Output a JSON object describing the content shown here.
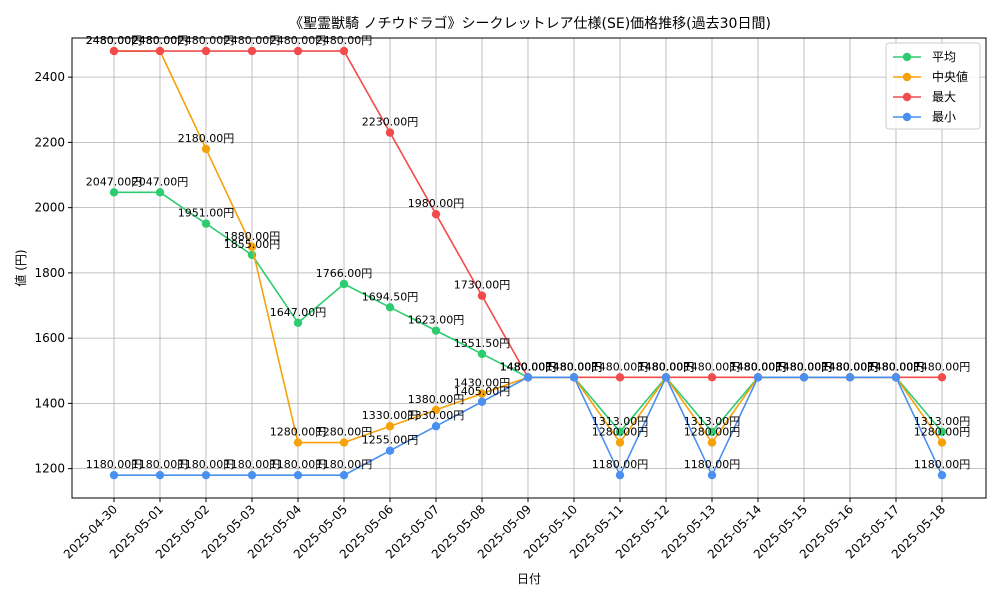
{
  "chart_data": {
    "type": "line",
    "title": "《聖霊獣騎 ノチウドラゴ》シークレットレア仕様(SE)価格推移(過去30日間)",
    "xlabel": "日付",
    "ylabel": "値 (円)",
    "ylim": [
      1110,
      2520
    ],
    "yticks": [
      1200,
      1400,
      1600,
      1800,
      2000,
      2200,
      2400
    ],
    "grid": true,
    "legend_position": "top-right",
    "label_suffix": "円",
    "categories": [
      "2025-04-30",
      "2025-05-01",
      "2025-05-02",
      "2025-05-03",
      "2025-05-04",
      "2025-05-05",
      "2025-05-06",
      "2025-05-07",
      "2025-05-08",
      "2025-05-09",
      "2025-05-10",
      "2025-05-11",
      "2025-05-12",
      "2025-05-13",
      "2025-05-14",
      "2025-05-15",
      "2025-05-16",
      "2025-05-17",
      "2025-05-18"
    ],
    "series": [
      {
        "name": "平均",
        "color": "#2ecc71",
        "values": [
          2047,
          2047,
          1951,
          1855,
          1647,
          1766,
          1694.5,
          1623,
          1551.5,
          1480,
          1480,
          1313,
          1480,
          1313,
          1480,
          1480,
          1480,
          1480,
          1313
        ]
      },
      {
        "name": "中央値",
        "color": "#f5a20a",
        "values": [
          2480,
          2480,
          2180,
          1880,
          1280,
          1280,
          1330,
          1380,
          1430,
          1480,
          1480,
          1280,
          1480,
          1280,
          1480,
          1480,
          1480,
          1480,
          1280
        ]
      },
      {
        "name": "最大",
        "color": "#f24b4b",
        "values": [
          2480,
          2480,
          2480,
          2480,
          2480,
          2480,
          2230,
          1980,
          1730,
          1480,
          1480,
          1480,
          1480,
          1480,
          1480,
          1480,
          1480,
          1480,
          1480
        ]
      },
      {
        "name": "最小",
        "color": "#4a90f0",
        "values": [
          1180,
          1180,
          1180,
          1180,
          1180,
          1180,
          1255,
          1330,
          1405,
          1480,
          1480,
          1180,
          1480,
          1180,
          1480,
          1480,
          1480,
          1480,
          1180
        ]
      }
    ]
  }
}
